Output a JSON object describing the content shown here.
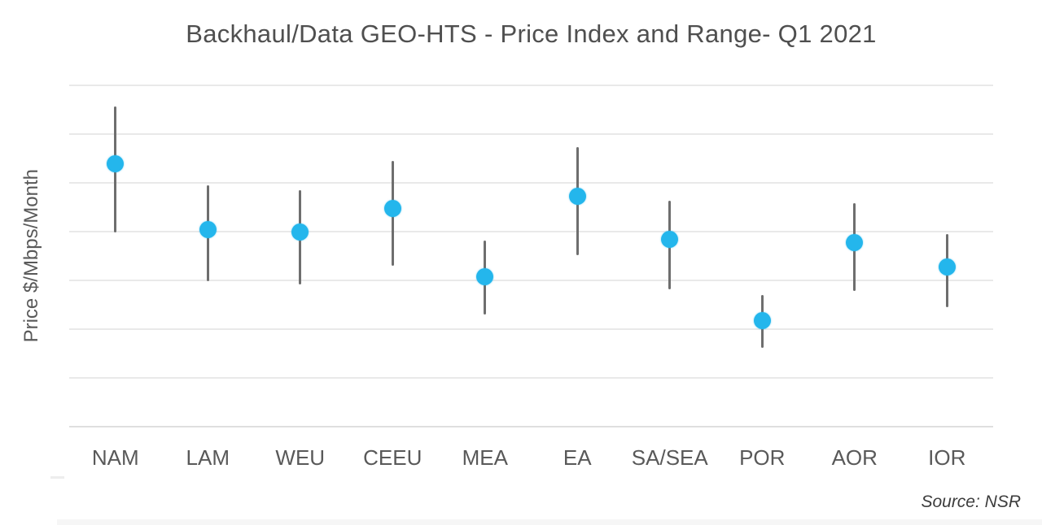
{
  "chart_data": {
    "type": "scatter",
    "chart_style": "price index dots with vertical high-low range bars per category",
    "title": "Backhaul/Data GEO-HTS - Price Index and Range- Q1 2021",
    "xlabel": "",
    "ylabel": "Price $/Mbps/Month",
    "source": "Source: NSR",
    "categories": [
      "NAM",
      "LAM",
      "WEU",
      "CEEU",
      "MEA",
      "EA",
      "SA/SEA",
      "POR",
      "AOR",
      "IOR"
    ],
    "series": [
      {
        "name": "Range high",
        "values": [
          6.57,
          4.95,
          4.85,
          5.45,
          3.82,
          5.73,
          4.63,
          2.7,
          4.58,
          3.95
        ]
      },
      {
        "name": "Price index",
        "values": [
          5.4,
          4.05,
          4.0,
          4.48,
          3.08,
          4.72,
          3.85,
          2.18,
          3.77,
          3.28
        ]
      },
      {
        "name": "Range low",
        "values": [
          3.98,
          2.98,
          2.92,
          3.3,
          2.3,
          3.52,
          2.82,
          1.62,
          2.78,
          2.45
        ]
      }
    ],
    "ylim": [
      0,
      7
    ],
    "y_axis": "no numeric tick labels; values estimated in gridline units (1 unit = one gridline spacing, baseline axis = 0)",
    "grid": "horizontal gridlines on, 7 lines above baseline",
    "legend": "none",
    "colors": {
      "index_dot": "#24b6ec",
      "range_line": "#6e6e6e",
      "gridline": "#e9e9e9",
      "axis_line": "#dfdfdf",
      "title_text": "#4f4f4f",
      "tick_text": "#595959",
      "source_text": "#3c3c3c"
    }
  }
}
